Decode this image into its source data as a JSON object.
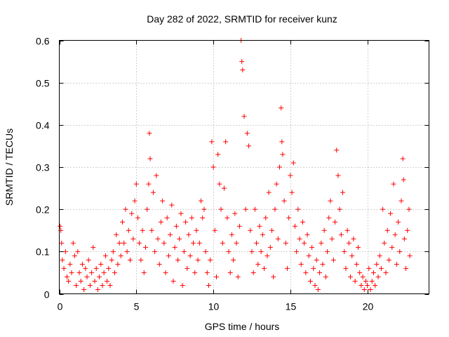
{
  "chart_data": {
    "type": "scatter",
    "title": "Day 282 of 2022, SRMTID for receiver kunz",
    "xlabel": "GPS time / hours",
    "ylabel": "SRMTID / TECUs",
    "xlim": [
      0,
      24
    ],
    "ylim": [
      0,
      0.6
    ],
    "xticks": [
      0,
      5,
      10,
      15,
      20
    ],
    "xtick_labels": [
      "0",
      "5",
      "10",
      "15",
      "20"
    ],
    "yticks": [
      0,
      0.1,
      0.2,
      0.3,
      0.4,
      0.5,
      0.6
    ],
    "ytick_labels": [
      "0",
      "0.1",
      "0.2",
      "0.3",
      "0.4",
      "0.5",
      "0.6"
    ],
    "grid": true,
    "marker": "+",
    "color": "#ff0000",
    "series": [
      {
        "name": "SRMTID",
        "points": [
          [
            0.05,
            0.16
          ],
          [
            0.1,
            0.15
          ],
          [
            0.15,
            0.12
          ],
          [
            0.2,
            0.08
          ],
          [
            0.3,
            0.06
          ],
          [
            0.4,
            0.1
          ],
          [
            0.5,
            0.04
          ],
          [
            0.6,
            0.03
          ],
          [
            0.7,
            0.07
          ],
          [
            0.8,
            0.05
          ],
          [
            0.9,
            0.12
          ],
          [
            1.0,
            0.09
          ],
          [
            1.1,
            0.02
          ],
          [
            1.2,
            0.1
          ],
          [
            1.3,
            0.05
          ],
          [
            1.4,
            0.03
          ],
          [
            1.5,
            0.07
          ],
          [
            1.6,
            0.01
          ],
          [
            1.7,
            0.06
          ],
          [
            1.8,
            0.04
          ],
          [
            1.9,
            0.08
          ],
          [
            2.0,
            0.02
          ],
          [
            2.1,
            0.05
          ],
          [
            2.2,
            0.11
          ],
          [
            2.3,
            0.03
          ],
          [
            2.4,
            0.06
          ],
          [
            2.5,
            0.01
          ],
          [
            2.6,
            0.04
          ],
          [
            2.7,
            0.07
          ],
          [
            2.8,
            0.02
          ],
          [
            2.9,
            0.05
          ],
          [
            3.0,
            0.09
          ],
          [
            3.1,
            0.03
          ],
          [
            3.2,
            0.06
          ],
          [
            3.3,
            0.02
          ],
          [
            3.4,
            0.08
          ],
          [
            3.5,
            0.1
          ],
          [
            3.6,
            0.05
          ],
          [
            3.7,
            0.14
          ],
          [
            3.8,
            0.07
          ],
          [
            3.9,
            0.12
          ],
          [
            4.0,
            0.09
          ],
          [
            4.1,
            0.17
          ],
          [
            4.2,
            0.12
          ],
          [
            4.3,
            0.2
          ],
          [
            4.4,
            0.1
          ],
          [
            4.5,
            0.15
          ],
          [
            4.6,
            0.08
          ],
          [
            4.7,
            0.19
          ],
          [
            4.8,
            0.13
          ],
          [
            4.9,
            0.22
          ],
          [
            5.0,
            0.26
          ],
          [
            5.1,
            0.18
          ],
          [
            5.2,
            0.12
          ],
          [
            5.3,
            0.08
          ],
          [
            5.4,
            0.15
          ],
          [
            5.5,
            0.05
          ],
          [
            5.6,
            0.11
          ],
          [
            5.7,
            0.2
          ],
          [
            5.8,
            0.26
          ],
          [
            5.85,
            0.38
          ],
          [
            5.9,
            0.32
          ],
          [
            6.0,
            0.15
          ],
          [
            6.1,
            0.24
          ],
          [
            6.2,
            0.1
          ],
          [
            6.3,
            0.28
          ],
          [
            6.4,
            0.13
          ],
          [
            6.5,
            0.07
          ],
          [
            6.6,
            0.17
          ],
          [
            6.7,
            0.22
          ],
          [
            6.8,
            0.12
          ],
          [
            6.9,
            0.05
          ],
          [
            7.0,
            0.18
          ],
          [
            7.1,
            0.09
          ],
          [
            7.2,
            0.14
          ],
          [
            7.3,
            0.21
          ],
          [
            7.4,
            0.03
          ],
          [
            7.5,
            0.11
          ],
          [
            7.6,
            0.16
          ],
          [
            7.7,
            0.08
          ],
          [
            7.8,
            0.13
          ],
          [
            7.9,
            0.19
          ],
          [
            8.0,
            0.02
          ],
          [
            8.1,
            0.1
          ],
          [
            8.2,
            0.17
          ],
          [
            8.3,
            0.06
          ],
          [
            8.4,
            0.14
          ],
          [
            8.5,
            0.09
          ],
          [
            8.6,
            0.18
          ],
          [
            8.7,
            0.12
          ],
          [
            8.8,
            0.05
          ],
          [
            8.9,
            0.15
          ],
          [
            9.0,
            0.08
          ],
          [
            9.1,
            0.12
          ],
          [
            9.2,
            0.22
          ],
          [
            9.3,
            0.18
          ],
          [
            9.4,
            0.2
          ],
          [
            9.5,
            0.1
          ],
          [
            9.6,
            0.05
          ],
          [
            9.7,
            0.02
          ],
          [
            9.8,
            0.08
          ],
          [
            9.9,
            0.36
          ],
          [
            10.0,
            0.3
          ],
          [
            10.1,
            0.15
          ],
          [
            10.2,
            0.04
          ],
          [
            10.3,
            0.33
          ],
          [
            10.4,
            0.26
          ],
          [
            10.5,
            0.2
          ],
          [
            10.6,
            0.12
          ],
          [
            10.7,
            0.25
          ],
          [
            10.8,
            0.36
          ],
          [
            10.9,
            0.18
          ],
          [
            11.0,
            0.1
          ],
          [
            11.1,
            0.05
          ],
          [
            11.2,
            0.14
          ],
          [
            11.3,
            0.08
          ],
          [
            11.4,
            0.19
          ],
          [
            11.5,
            0.12
          ],
          [
            11.6,
            0.04
          ],
          [
            11.7,
            0.16
          ],
          [
            11.8,
            0.6
          ],
          [
            11.85,
            0.55
          ],
          [
            11.9,
            0.53
          ],
          [
            12.0,
            0.42
          ],
          [
            12.1,
            0.2
          ],
          [
            12.2,
            0.38
          ],
          [
            12.3,
            0.35
          ],
          [
            12.4,
            0.15
          ],
          [
            12.5,
            0.1
          ],
          [
            12.6,
            0.05
          ],
          [
            12.7,
            0.2
          ],
          [
            12.8,
            0.12
          ],
          [
            12.9,
            0.07
          ],
          [
            13.0,
            0.16
          ],
          [
            13.1,
            0.1
          ],
          [
            13.2,
            0.14
          ],
          [
            13.3,
            0.06
          ],
          [
            13.4,
            0.18
          ],
          [
            13.5,
            0.09
          ],
          [
            13.6,
            0.24
          ],
          [
            13.7,
            0.11
          ],
          [
            13.8,
            0.15
          ],
          [
            13.9,
            0.04
          ],
          [
            14.0,
            0.2
          ],
          [
            14.1,
            0.26
          ],
          [
            14.2,
            0.13
          ],
          [
            14.3,
            0.3
          ],
          [
            14.4,
            0.44
          ],
          [
            14.45,
            0.36
          ],
          [
            14.5,
            0.33
          ],
          [
            14.6,
            0.22
          ],
          [
            14.7,
            0.12
          ],
          [
            14.8,
            0.06
          ],
          [
            14.9,
            0.18
          ],
          [
            15.0,
            0.28
          ],
          [
            15.1,
            0.24
          ],
          [
            15.2,
            0.31
          ],
          [
            15.3,
            0.16
          ],
          [
            15.4,
            0.1
          ],
          [
            15.5,
            0.2
          ],
          [
            15.6,
            0.13
          ],
          [
            15.7,
            0.07
          ],
          [
            15.8,
            0.17
          ],
          [
            15.9,
            0.12
          ],
          [
            16.0,
            0.05
          ],
          [
            16.1,
            0.14
          ],
          [
            16.2,
            0.09
          ],
          [
            16.3,
            0.03
          ],
          [
            16.4,
            0.11
          ],
          [
            16.5,
            0.06
          ],
          [
            16.6,
            0.02
          ],
          [
            16.7,
            0.08
          ],
          [
            16.8,
            0.01
          ],
          [
            16.9,
            0.05
          ],
          [
            17.0,
            0.12
          ],
          [
            17.1,
            0.07
          ],
          [
            17.2,
            0.15
          ],
          [
            17.3,
            0.04
          ],
          [
            17.4,
            0.1
          ],
          [
            17.5,
            0.18
          ],
          [
            17.6,
            0.22
          ],
          [
            17.7,
            0.13
          ],
          [
            17.8,
            0.08
          ],
          [
            17.9,
            0.17
          ],
          [
            18.0,
            0.34
          ],
          [
            18.1,
            0.28
          ],
          [
            18.2,
            0.2
          ],
          [
            18.3,
            0.14
          ],
          [
            18.4,
            0.24
          ],
          [
            18.5,
            0.1
          ],
          [
            18.6,
            0.06
          ],
          [
            18.7,
            0.15
          ],
          [
            18.8,
            0.12
          ],
          [
            18.9,
            0.04
          ],
          [
            19.0,
            0.09
          ],
          [
            19.1,
            0.13
          ],
          [
            19.2,
            0.03
          ],
          [
            19.3,
            0.07
          ],
          [
            19.4,
            0.11
          ],
          [
            19.5,
            0.05
          ],
          [
            19.6,
            0.02
          ],
          [
            19.7,
            0.04
          ],
          [
            19.8,
            0.01
          ],
          [
            19.9,
            0.03
          ],
          [
            20.0,
            0.02
          ],
          [
            20.1,
            0.06
          ],
          [
            20.2,
            0.01
          ],
          [
            20.3,
            0.03
          ],
          [
            20.4,
            0.05
          ],
          [
            20.5,
            0.02
          ],
          [
            20.6,
            0.07
          ],
          [
            20.7,
            0.04
          ],
          [
            20.8,
            0.09
          ],
          [
            20.9,
            0.06
          ],
          [
            21.0,
            0.2
          ],
          [
            21.1,
            0.12
          ],
          [
            21.2,
            0.05
          ],
          [
            21.3,
            0.15
          ],
          [
            21.4,
            0.08
          ],
          [
            21.5,
            0.19
          ],
          [
            21.6,
            0.11
          ],
          [
            21.7,
            0.26
          ],
          [
            21.8,
            0.14
          ],
          [
            21.9,
            0.07
          ],
          [
            22.0,
            0.17
          ],
          [
            22.1,
            0.1
          ],
          [
            22.2,
            0.22
          ],
          [
            22.3,
            0.32
          ],
          [
            22.35,
            0.27
          ],
          [
            22.4,
            0.13
          ],
          [
            22.5,
            0.06
          ],
          [
            22.6,
            0.15
          ],
          [
            22.7,
            0.2
          ],
          [
            22.75,
            0.09
          ]
        ]
      }
    ]
  }
}
